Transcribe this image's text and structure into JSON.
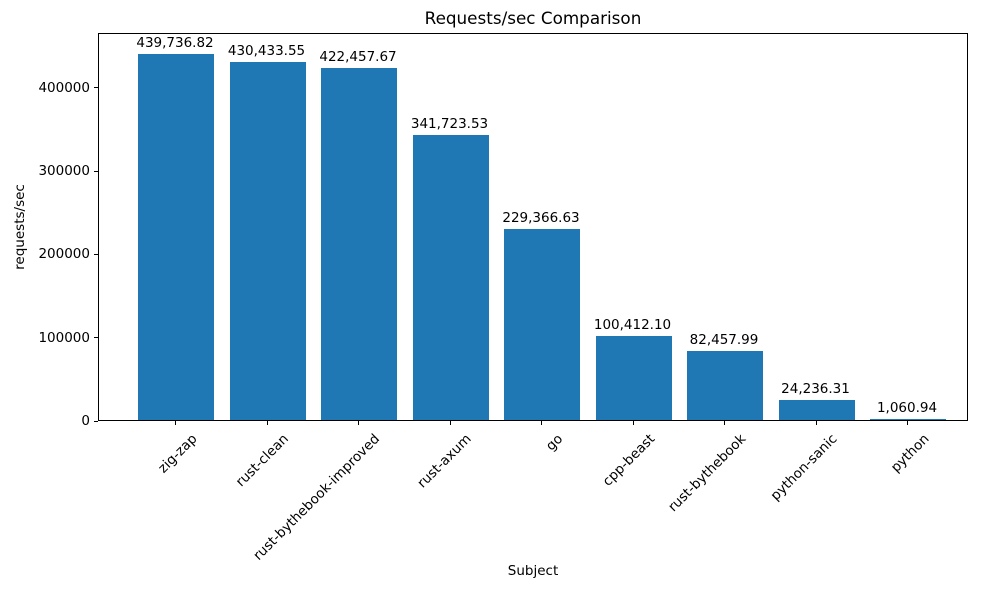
{
  "chart_data": {
    "type": "bar",
    "title": "Requests/sec Comparison",
    "xlabel": "Subject",
    "ylabel": "requests/sec",
    "categories": [
      "zig-zap",
      "rust-clean",
      "rust-bythebook-improved",
      "rust-axum",
      "go",
      "cpp-beast",
      "rust-bythebook",
      "python-sanic",
      "python"
    ],
    "values": [
      439736.82,
      430433.55,
      422457.67,
      341723.53,
      229366.63,
      100412.1,
      82457.99,
      24236.31,
      1060.94
    ],
    "value_labels": [
      "439,736.82",
      "430,433.55",
      "422,457.67",
      "341,723.53",
      "229,366.63",
      "100,412.10",
      "82,457.99",
      "24,236.31",
      "1,060.94"
    ],
    "yticks": [
      0,
      100000,
      200000,
      300000,
      400000
    ],
    "ytick_labels": [
      "0",
      "100000",
      "200000",
      "300000",
      "400000"
    ],
    "ylim": [
      0,
      466000
    ],
    "bar_color": "#1f77b4",
    "grid": false,
    "legend": null
  }
}
